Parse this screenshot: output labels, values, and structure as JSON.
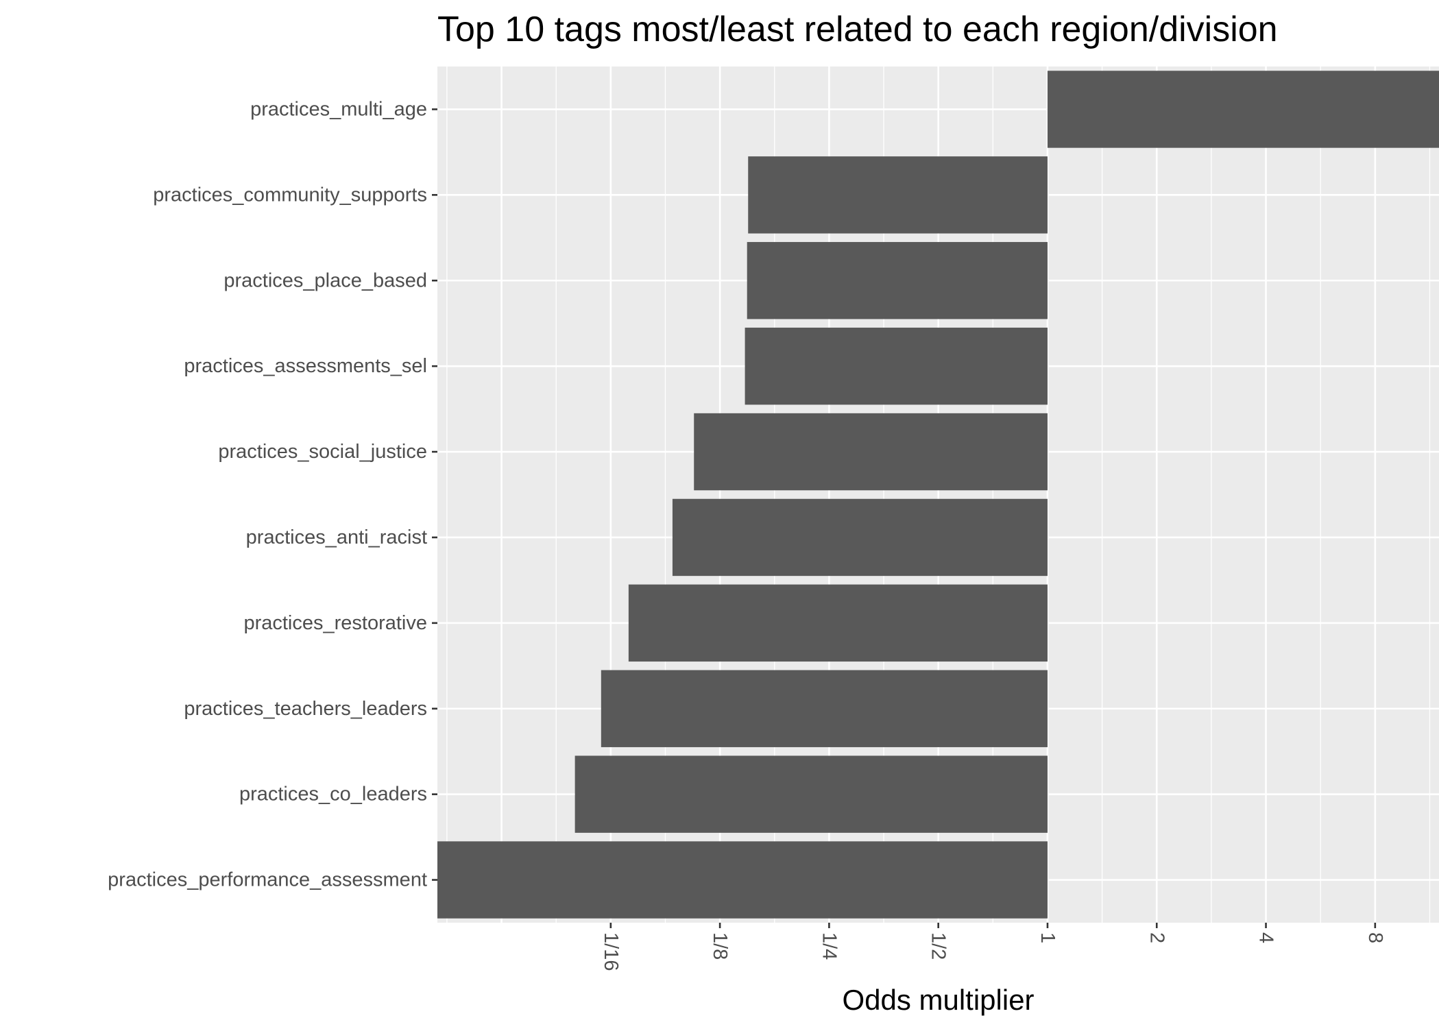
{
  "chart_data": {
    "type": "bar",
    "orientation": "horizontal",
    "title": "Top 10 tags most/least related to each region/division",
    "xlabel": "Odds multiplier",
    "ylabel": "",
    "x_scale": "log2",
    "xlim": [
      0.0208,
      12.0
    ],
    "baseline": 1,
    "x_ticks": [
      {
        "value": 0.0625,
        "label": "1/16"
      },
      {
        "value": 0.125,
        "label": "1/8"
      },
      {
        "value": 0.25,
        "label": "1/4"
      },
      {
        "value": 0.5,
        "label": "1/2"
      },
      {
        "value": 1,
        "label": "1"
      },
      {
        "value": 2,
        "label": "2"
      },
      {
        "value": 4,
        "label": "4"
      },
      {
        "value": 8,
        "label": "8"
      }
    ],
    "grid": true,
    "bar_color": "#595959",
    "panel_color": "#EBEBEB",
    "categories": [
      "practices_multi_age",
      "practices_community_supports",
      "practices_place_based",
      "practices_assessments_sel",
      "practices_social_justice",
      "practices_anti_racist",
      "practices_restorative",
      "practices_teachers_leaders",
      "practices_co_leaders",
      "practices_performance_assessment"
    ],
    "values": [
      12.0,
      0.1495,
      0.1485,
      0.1465,
      0.106,
      0.0925,
      0.07,
      0.0588,
      0.0498,
      0.0208
    ]
  }
}
